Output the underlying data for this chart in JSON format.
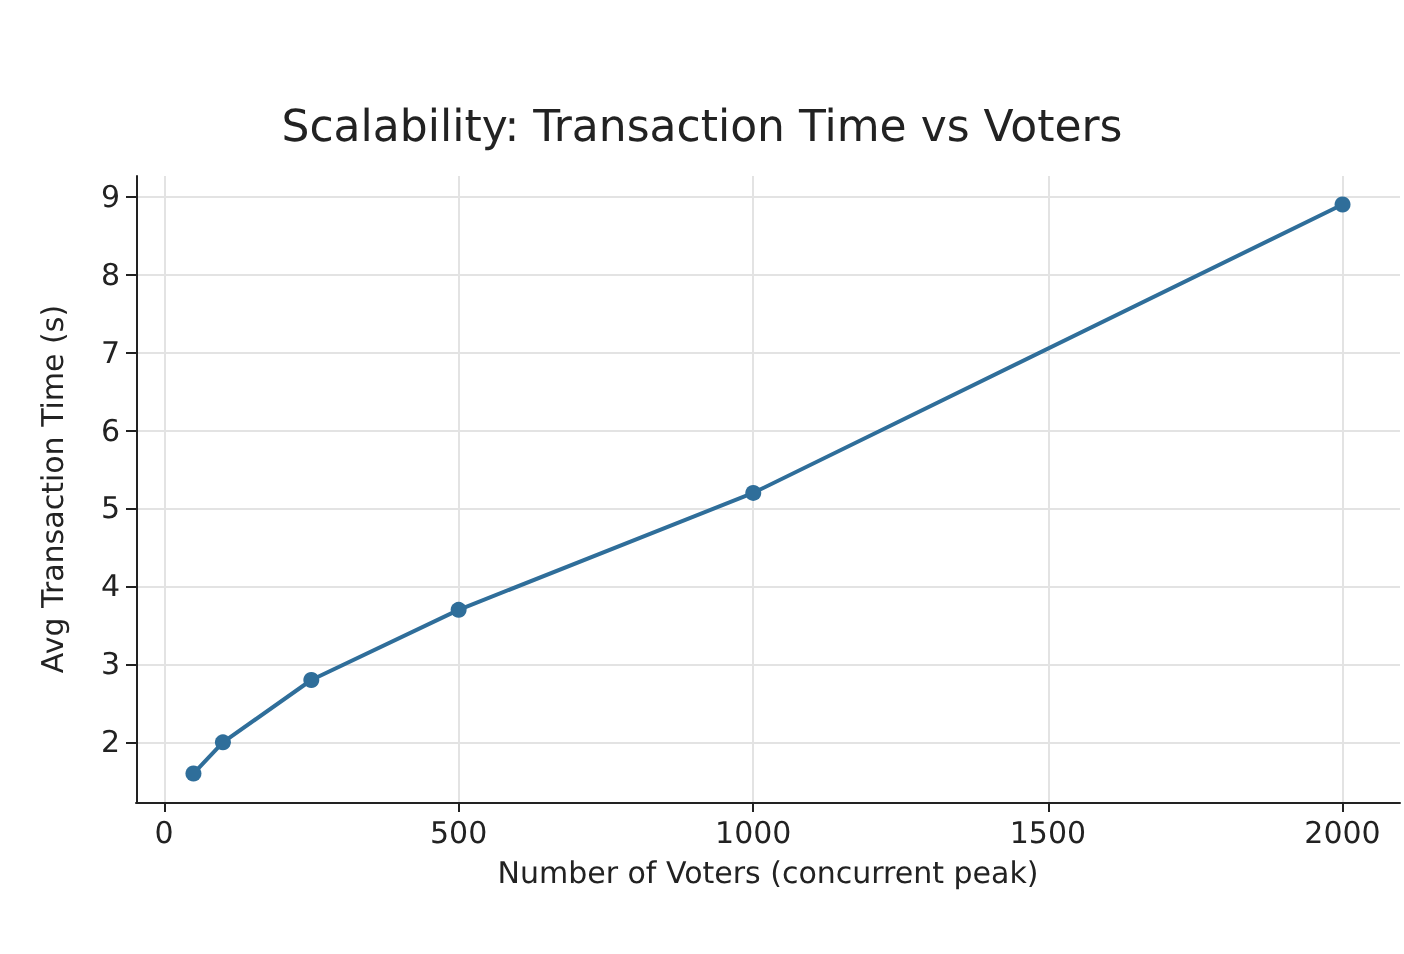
{
  "chart_data": {
    "type": "line",
    "title": "Scalability: Transaction Time vs Voters",
    "xlabel": "Number of Voters (concurrent peak)",
    "ylabel": "Avg Transaction Time (s)",
    "x": [
      50,
      100,
      250,
      500,
      1000,
      2000
    ],
    "series": [
      {
        "color": "#2f6e9a",
        "values": [
          1.6,
          2.0,
          2.8,
          3.7,
          5.2,
          8.9
        ]
      }
    ],
    "xlim": [
      -47.5,
      2097.5
    ],
    "xticks": [
      0,
      500,
      1000,
      1500,
      2000
    ],
    "ylim": [
      1.235,
      9.265
    ],
    "yticks": [
      2,
      3,
      4,
      5,
      6,
      7,
      8,
      9
    ],
    "grid": true,
    "marker": "circle",
    "line_style": "solid"
  }
}
